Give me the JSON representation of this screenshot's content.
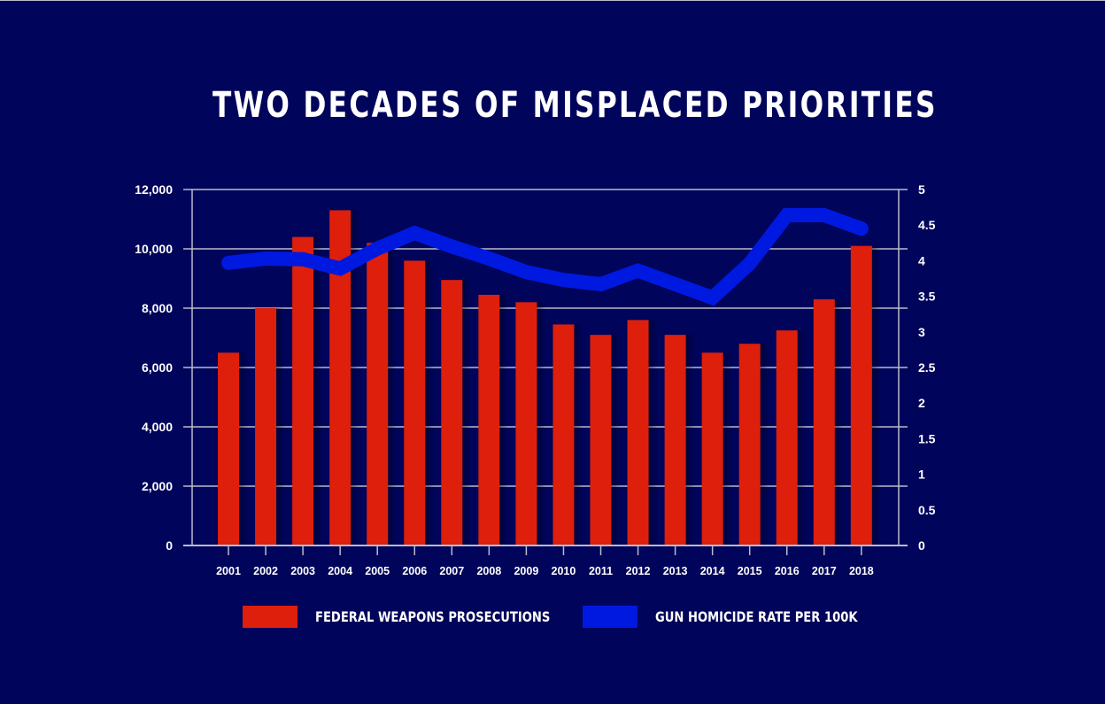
{
  "chart_data": {
    "type": "bar",
    "title": "TWO DECADES OF MISPLACED PRIORITIES",
    "categories": [
      "2001",
      "2002",
      "2003",
      "2004",
      "2005",
      "2006",
      "2007",
      "2008",
      "2009",
      "2010",
      "2011",
      "2012",
      "2013",
      "2014",
      "2015",
      "2016",
      "2017",
      "2018"
    ],
    "series": [
      {
        "name": "FEDERAL WEAPONS PROSECUTIONS",
        "type": "bar",
        "axis": "left",
        "color": "#de1f0c",
        "values": [
          6500,
          8000,
          10400,
          11300,
          10200,
          9600,
          8950,
          8450,
          8200,
          7450,
          7100,
          7600,
          7100,
          6500,
          6800,
          7250,
          8300,
          10100
        ]
      },
      {
        "name": "GUN HOMICIDE RATE PER 100K",
        "type": "line",
        "axis": "right",
        "color": "#0019e0",
        "values": [
          3.97,
          4.03,
          4.02,
          3.89,
          4.17,
          4.39,
          4.2,
          4.03,
          3.84,
          3.73,
          3.67,
          3.86,
          3.67,
          3.48,
          3.96,
          4.64,
          4.64,
          4.45
        ]
      }
    ],
    "xlabel": "",
    "ylabel": "",
    "y_left": {
      "lim": [
        0,
        12000
      ],
      "ticks": [
        0,
        2000,
        4000,
        6000,
        8000,
        10000,
        12000
      ],
      "tick_labels": [
        "0",
        "2,000",
        "4,000",
        "6,000",
        "8,000",
        "10,000",
        "12,000"
      ]
    },
    "y_right": {
      "lim": [
        0,
        5
      ],
      "ticks": [
        0,
        0.5,
        1,
        1.5,
        2,
        2.5,
        3,
        3.5,
        4,
        4.5,
        5
      ],
      "tick_labels": [
        "0",
        "0.5",
        "1",
        "1.5",
        "2",
        "2.5",
        "3",
        "3.5",
        "4",
        "4.5",
        "5"
      ]
    },
    "grid": true,
    "legend": "bottom",
    "background": "#00045a"
  }
}
